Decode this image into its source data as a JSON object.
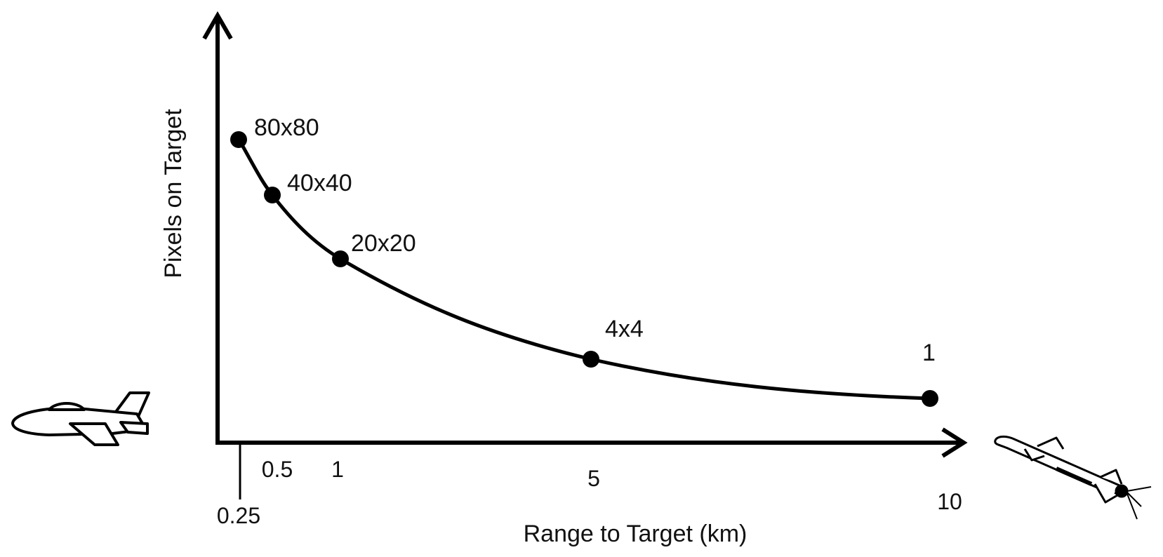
{
  "chart_data": {
    "type": "line",
    "xlabel": "Range to Target (km)",
    "ylabel": "Pixels on Target",
    "x_ticks": [
      "0.25",
      "0.5",
      "1",
      "5",
      "10"
    ],
    "grid": false,
    "series": [
      {
        "points": [
          {
            "x": 0.25,
            "label": "80x80"
          },
          {
            "x": 0.5,
            "label": "40x40"
          },
          {
            "x": 1,
            "label": "20x20"
          },
          {
            "x": 5,
            "label": "4x4"
          },
          {
            "x": 10,
            "label": "1"
          }
        ]
      }
    ]
  },
  "icons": {
    "left": "airplane-icon",
    "right": "missile-icon"
  },
  "colors": {
    "ink": "#000000",
    "background": "#ffffff"
  }
}
